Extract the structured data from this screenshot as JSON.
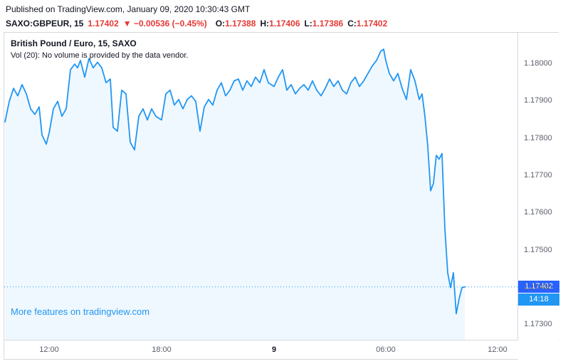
{
  "header": {
    "published": "Published on TradingView.com, January 09, 2020 10:30:43 GMT",
    "symbol": "SAXO:GBPEUR, 15",
    "last_price": "1.17402",
    "change": "▼ −0.00536 (−0.45%)",
    "ohlc": [
      {
        "label": "O:",
        "value": "1.17388"
      },
      {
        "label": "H:",
        "value": "1.17406"
      },
      {
        "label": "L:",
        "value": "1.17386"
      },
      {
        "label": "C:",
        "value": "1.17402"
      }
    ]
  },
  "legend": {
    "title": "British Pound / Euro, 15, SAXO",
    "vol": "Vol (20): No volume is provided by the data vendor."
  },
  "footer_link": "More features on tradingview.com",
  "price_axis": {
    "ticks": [
      "1.18000",
      "1.17900",
      "1.17800",
      "1.17700",
      "1.17600",
      "1.17500",
      "1.17400",
      "1.17300"
    ],
    "current_price": "1.17402",
    "countdown": "14:18"
  },
  "time_axis": {
    "ticks": [
      {
        "label": "12:00",
        "x": 63,
        "bold": false
      },
      {
        "label": "18:00",
        "x": 221,
        "bold": false
      },
      {
        "label": "9",
        "x": 379,
        "bold": true
      },
      {
        "label": "06:00",
        "x": 536,
        "bold": false
      },
      {
        "label": "12:00",
        "x": 693,
        "bold": false
      }
    ]
  },
  "colors": {
    "line": "#2196f3",
    "fill": "rgba(33,150,243,0.07)",
    "red": "#e53935",
    "link": "#2196f3",
    "axis_text": "#5a5f6b",
    "badge_price_bg": "#2962ff",
    "badge_countdown_bg": "#2196f3"
  },
  "chart_data": {
    "type": "line",
    "title": "British Pound / Euro, 15, SAXO",
    "symbol": "SAXO:GBPEUR",
    "interval": "15",
    "last": 1.17402,
    "ohlc_last": {
      "o": 1.17388,
      "h": 1.17406,
      "l": 1.17386,
      "c": 1.17402
    },
    "change": -0.00536,
    "change_pct": -0.45,
    "current_price": 1.17402,
    "countdown": "14:18",
    "ylim": [
      1.173,
      1.18
    ],
    "y_ticks": [
      1.18,
      1.179,
      1.178,
      1.177,
      1.176,
      1.175,
      1.174,
      1.173
    ],
    "x_tick_labels": [
      "12:00",
      "18:00",
      "9",
      "06:00",
      "12:00"
    ],
    "grid": false,
    "legend_position": "top-left",
    "points": [
      [
        1,
        1.17845
      ],
      [
        7,
        1.179
      ],
      [
        13,
        1.17935
      ],
      [
        19,
        1.17915
      ],
      [
        25,
        1.17945
      ],
      [
        31,
        1.1792
      ],
      [
        37,
        1.1788
      ],
      [
        43,
        1.17865
      ],
      [
        49,
        1.17885
      ],
      [
        53,
        1.1781
      ],
      [
        59,
        1.17785
      ],
      [
        63,
        1.17815
      ],
      [
        69,
        1.1788
      ],
      [
        75,
        1.179
      ],
      [
        81,
        1.1786
      ],
      [
        87,
        1.1788
      ],
      [
        93,
        1.17985
      ],
      [
        99,
        1.18
      ],
      [
        103,
        1.1799
      ],
      [
        107,
        1.1801
      ],
      [
        113,
        1.17965
      ],
      [
        119,
        1.18015
      ],
      [
        125,
        1.1799
      ],
      [
        131,
        1.18005
      ],
      [
        137,
        1.1799
      ],
      [
        143,
        1.1795
      ],
      [
        149,
        1.1796
      ],
      [
        153,
        1.1783
      ],
      [
        159,
        1.1782
      ],
      [
        165,
        1.1793
      ],
      [
        171,
        1.1792
      ],
      [
        177,
        1.1779
      ],
      [
        183,
        1.1777
      ],
      [
        189,
        1.1786
      ],
      [
        195,
        1.1788
      ],
      [
        201,
        1.1785
      ],
      [
        207,
        1.1788
      ],
      [
        213,
        1.1786
      ],
      [
        221,
        1.1785
      ],
      [
        227,
        1.1792
      ],
      [
        233,
        1.1793
      ],
      [
        239,
        1.1789
      ],
      [
        245,
        1.17905
      ],
      [
        251,
        1.1788
      ],
      [
        257,
        1.17905
      ],
      [
        263,
        1.17915
      ],
      [
        269,
        1.179
      ],
      [
        275,
        1.1782
      ],
      [
        281,
        1.17885
      ],
      [
        287,
        1.17905
      ],
      [
        293,
        1.1789
      ],
      [
        299,
        1.1793
      ],
      [
        305,
        1.1795
      ],
      [
        311,
        1.17915
      ],
      [
        317,
        1.1793
      ],
      [
        323,
        1.17955
      ],
      [
        329,
        1.1796
      ],
      [
        335,
        1.1793
      ],
      [
        341,
        1.17955
      ],
      [
        347,
        1.1794
      ],
      [
        353,
        1.17965
      ],
      [
        359,
        1.1795
      ],
      [
        365,
        1.17985
      ],
      [
        371,
        1.1795
      ],
      [
        379,
        1.1794
      ],
      [
        385,
        1.17965
      ],
      [
        391,
        1.17985
      ],
      [
        397,
        1.1793
      ],
      [
        403,
        1.17945
      ],
      [
        409,
        1.1792
      ],
      [
        415,
        1.17935
      ],
      [
        421,
        1.17945
      ],
      [
        427,
        1.1793
      ],
      [
        433,
        1.17955
      ],
      [
        439,
        1.1793
      ],
      [
        445,
        1.17915
      ],
      [
        451,
        1.17935
      ],
      [
        457,
        1.1796
      ],
      [
        463,
        1.1794
      ],
      [
        469,
        1.17955
      ],
      [
        475,
        1.1793
      ],
      [
        481,
        1.1792
      ],
      [
        487,
        1.1795
      ],
      [
        493,
        1.17965
      ],
      [
        499,
        1.1794
      ],
      [
        505,
        1.17955
      ],
      [
        511,
        1.17975
      ],
      [
        517,
        1.17995
      ],
      [
        523,
        1.1801
      ],
      [
        529,
        1.18035
      ],
      [
        533,
        1.1804
      ],
      [
        536,
        1.1801
      ],
      [
        541,
        1.17975
      ],
      [
        547,
        1.17955
      ],
      [
        553,
        1.17975
      ],
      [
        559,
        1.17935
      ],
      [
        565,
        1.17905
      ],
      [
        571,
        1.17985
      ],
      [
        577,
        1.17955
      ],
      [
        583,
        1.17905
      ],
      [
        587,
        1.1792
      ],
      [
        591,
        1.1786
      ],
      [
        595,
        1.1778
      ],
      [
        599,
        1.1766
      ],
      [
        603,
        1.1768
      ],
      [
        607,
        1.17755
      ],
      [
        611,
        1.17745
      ],
      [
        615,
        1.1776
      ],
      [
        619,
        1.1756
      ],
      [
        623,
        1.1744
      ],
      [
        627,
        1.174
      ],
      [
        631,
        1.1744
      ],
      [
        635,
        1.1733
      ],
      [
        639,
        1.1737
      ],
      [
        643,
        1.174
      ],
      [
        647,
        1.17402
      ]
    ]
  }
}
